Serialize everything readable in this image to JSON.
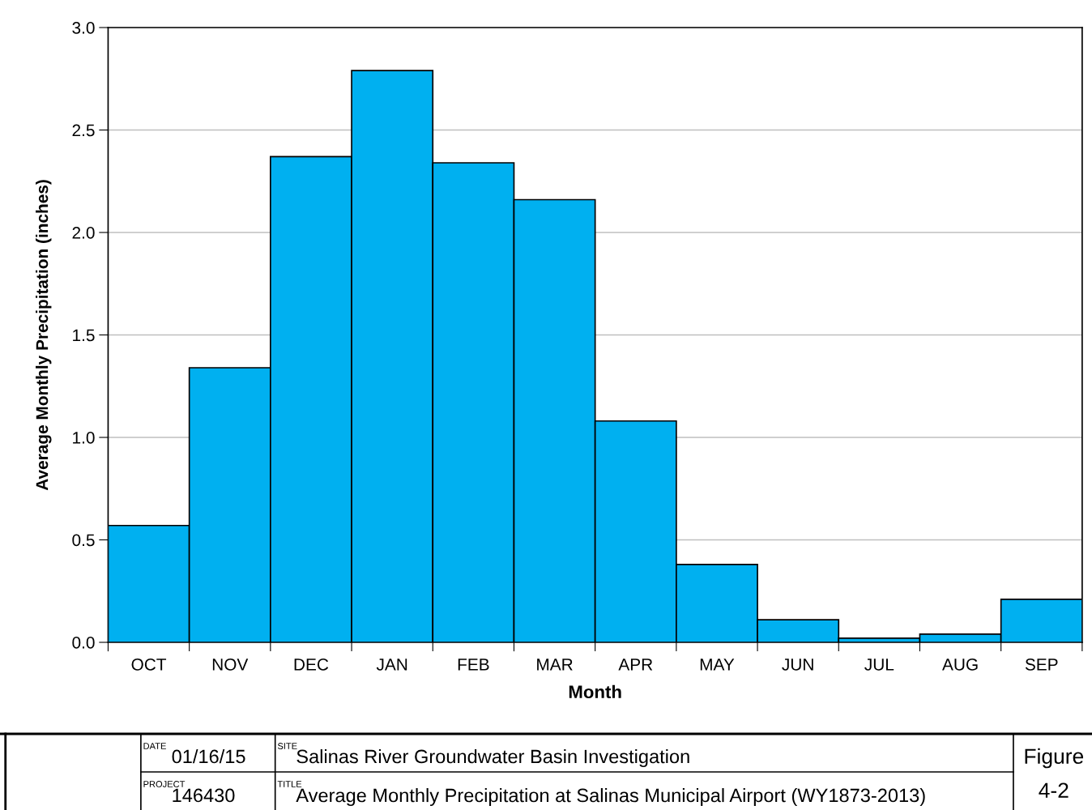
{
  "chart_data": {
    "type": "bar",
    "xlabel": "Month",
    "ylabel": "Average Monthly Precipitation (inches)",
    "categories": [
      "OCT",
      "NOV",
      "DEC",
      "JAN",
      "FEB",
      "MAR",
      "APR",
      "MAY",
      "JUN",
      "JUL",
      "AUG",
      "SEP"
    ],
    "values": [
      0.57,
      1.34,
      2.37,
      2.79,
      2.34,
      2.16,
      1.08,
      0.38,
      0.11,
      0.02,
      0.04,
      0.21
    ],
    "color": "#00b0f0",
    "ylim": [
      0,
      3
    ],
    "yticks": [
      {
        "value": 0,
        "label": "0.0"
      },
      {
        "value": 0.5,
        "label": "0.5"
      },
      {
        "value": 1,
        "label": "1.0"
      },
      {
        "value": 1.5,
        "label": "1.5"
      },
      {
        "value": 2,
        "label": "2.0"
      },
      {
        "value": 2.5,
        "label": "2.5"
      },
      {
        "value": 3,
        "label": "3.0"
      }
    ],
    "grid": "y",
    "annotations": [
      "DATE",
      "01/16/15",
      "PROJECT",
      "146430",
      "SITE",
      "Salinas River Groundwater Basin Investigation",
      "TITLE",
      "Average Monthly Precipitation at Salinas Municipal Airport (WY1873-2013)",
      "Figure",
      "4-2"
    ]
  }
}
